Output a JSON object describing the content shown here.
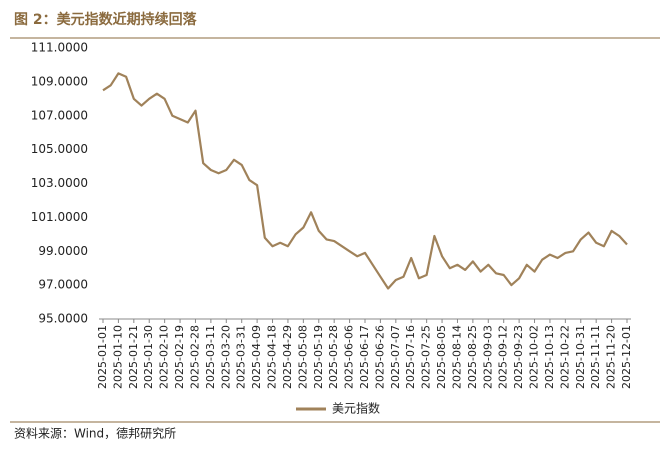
{
  "chart_data": {
    "type": "line",
    "title": "图 2：美元指数近期持续回落",
    "source": "资料来源：Wind，德邦研究所",
    "categories": [
      "2025-01-01",
      null,
      "2025-01-10",
      null,
      "2025-01-21",
      null,
      "2025-01-30",
      null,
      "2025-02-10",
      null,
      "2025-02-19",
      null,
      "2025-02-28",
      null,
      "2025-03-11",
      null,
      "2025-03-20",
      null,
      "2025-03-31",
      null,
      "2025-04-09",
      null,
      "2025-04-18",
      null,
      "2025-04-29",
      null,
      "2025-05-08",
      null,
      "2025-05-19",
      null,
      "2025-05-28",
      null,
      "2025-06-06",
      null,
      "2025-06-17",
      null,
      "2025-06-26",
      null,
      "2025-07-07",
      null,
      "2025-07-16",
      null,
      "2025-07-25",
      null,
      "2025-08-05",
      null,
      "2025-08-14",
      null,
      "2025-08-25",
      null,
      "2025-09-03",
      null,
      "2025-09-12",
      null,
      "2025-09-23",
      null,
      "2025-10-02",
      null,
      "2025-10-13",
      null,
      "2025-10-22",
      null,
      "2025-10-31",
      null,
      "2025-11-11",
      null,
      "2025-11-20",
      null,
      "2025-12-01"
    ],
    "series": [
      {
        "name": "美元指数",
        "color": "#a0825a",
        "values": [
          108.5,
          108.8,
          109.5,
          109.3,
          108.0,
          107.6,
          108.0,
          108.3,
          108.0,
          107.0,
          106.8,
          106.6,
          107.3,
          104.2,
          103.8,
          103.6,
          103.8,
          104.4,
          104.1,
          103.2,
          102.9,
          99.8,
          99.3,
          99.5,
          99.3,
          100.0,
          100.4,
          101.3,
          100.2,
          99.7,
          99.6,
          99.3,
          99.0,
          98.7,
          98.9,
          98.2,
          97.5,
          96.8,
          97.3,
          97.5,
          98.6,
          97.4,
          97.6,
          99.9,
          98.7,
          98.0,
          98.2,
          97.9,
          98.4,
          97.8,
          98.2,
          97.7,
          97.6,
          97.0,
          97.4,
          98.2,
          97.8,
          98.5,
          98.8,
          98.6,
          98.9,
          99.0,
          99.7,
          100.1,
          99.5,
          99.3,
          100.2,
          99.9,
          99.4
        ]
      }
    ],
    "ylim": [
      95,
      111
    ],
    "yticks": [
      {
        "value": 95,
        "label": "95.0000"
      },
      {
        "value": 97,
        "label": "97.0000"
      },
      {
        "value": 99,
        "label": "99.0000"
      },
      {
        "value": 101,
        "label": "101.0000"
      },
      {
        "value": 103,
        "label": "103.0000"
      },
      {
        "value": 105,
        "label": "105.0000"
      },
      {
        "value": 107,
        "label": "107.0000"
      },
      {
        "value": 109,
        "label": "109.0000"
      },
      {
        "value": 111,
        "label": "111.0000"
      }
    ],
    "grid": false
  }
}
